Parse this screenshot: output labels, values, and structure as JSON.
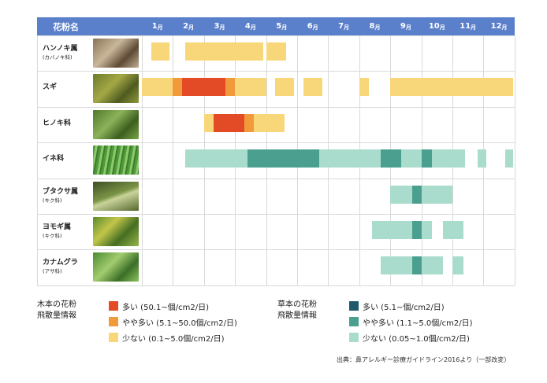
{
  "header": {
    "name_label": "花粉名"
  },
  "months": [
    {
      "num": "1",
      "unit": "月"
    },
    {
      "num": "2",
      "unit": "月"
    },
    {
      "num": "3",
      "unit": "月"
    },
    {
      "num": "4",
      "unit": "月"
    },
    {
      "num": "5",
      "unit": "月"
    },
    {
      "num": "6",
      "unit": "月"
    },
    {
      "num": "7",
      "unit": "月"
    },
    {
      "num": "8",
      "unit": "月"
    },
    {
      "num": "9",
      "unit": "月"
    },
    {
      "num": "10",
      "unit": "月"
    },
    {
      "num": "11",
      "unit": "月"
    },
    {
      "num": "12",
      "unit": "月"
    }
  ],
  "rows": [
    {
      "name": "ハンノキ属",
      "sub": "(カバノキ科)"
    },
    {
      "name": "スギ",
      "sub": ""
    },
    {
      "name": "ヒノキ科",
      "sub": ""
    },
    {
      "name": "イネ科",
      "sub": ""
    },
    {
      "name": "ブタクサ属",
      "sub": "(キク科)"
    },
    {
      "name": "ヨモギ属",
      "sub": "(キク科)"
    },
    {
      "name": "カナムグラ",
      "sub": "(アサ科)"
    }
  ],
  "legend_tree": {
    "title_line1": "木本の花粉",
    "title_line2": "飛散量情報",
    "items": [
      {
        "label": "多い (50.1~個/cm2/日)",
        "color": "#e34a26"
      },
      {
        "label": "やや多い (5.1~50.0個/cm2/日)",
        "color": "#f09a3c"
      },
      {
        "label": "少ない (0.1~5.0個/cm2/日)",
        "color": "#f8d77a"
      }
    ]
  },
  "legend_grass": {
    "title_line1": "草本の花粉",
    "title_line2": "飛散量情報",
    "items": [
      {
        "label": "多い (5.1~個/cm2/日)",
        "color": "#1f5a6b"
      },
      {
        "label": "やや多い (1.1~5.0個/cm2/日)",
        "color": "#4b9f8e"
      },
      {
        "label": "少ない (0.05~1.0個/cm2/日)",
        "color": "#a9dccd"
      }
    ]
  },
  "source": "出典：鼻アレルギー診療ガイドライン2016より（一部改変）",
  "colors": {
    "header": "#5a7fcb",
    "tree_high": "#e34a26",
    "tree_mid": "#f09a3c",
    "tree_low": "#f8d77a",
    "grass_high": "#1f5a6b",
    "grass_mid": "#4b9f8e",
    "grass_low": "#a9dccd"
  },
  "chart_data": {
    "type": "table",
    "columns": [
      "1月",
      "2月",
      "3月",
      "4月",
      "5月",
      "6月",
      "7月",
      "8月",
      "9月",
      "10月",
      "11月",
      "12月"
    ],
    "series": [
      {
        "name": "ハンノキ属",
        "segments": [
          {
            "start": 1.3,
            "end": 1.9,
            "level": "low"
          },
          {
            "start": 2.4,
            "end": 4.9,
            "level": "low"
          },
          {
            "start": 5.0,
            "end": 5.65,
            "level": "low"
          }
        ]
      },
      {
        "name": "スギ",
        "segments": [
          {
            "start": 1.0,
            "end": 2.0,
            "level": "low"
          },
          {
            "start": 2.0,
            "end": 2.3,
            "level": "mid"
          },
          {
            "start": 2.3,
            "end": 3.7,
            "level": "high"
          },
          {
            "start": 3.7,
            "end": 4.0,
            "level": "mid"
          },
          {
            "start": 4.0,
            "end": 5.0,
            "level": "low"
          },
          {
            "start": 5.3,
            "end": 5.9,
            "level": "low"
          },
          {
            "start": 6.2,
            "end": 6.8,
            "level": "low"
          },
          {
            "start": 8.0,
            "end": 8.3,
            "level": "low"
          },
          {
            "start": 9.0,
            "end": 12.95,
            "level": "low"
          }
        ]
      },
      {
        "name": "ヒノキ科",
        "segments": [
          {
            "start": 3.0,
            "end": 3.3,
            "level": "low"
          },
          {
            "start": 3.3,
            "end": 4.3,
            "level": "high"
          },
          {
            "start": 4.3,
            "end": 4.6,
            "level": "mid"
          },
          {
            "start": 4.6,
            "end": 5.6,
            "level": "low"
          }
        ]
      },
      {
        "name": "イネ科",
        "segments": [
          {
            "start": 2.4,
            "end": 4.4,
            "level": "low"
          },
          {
            "start": 4.4,
            "end": 6.7,
            "level": "mid"
          },
          {
            "start": 6.7,
            "end": 8.7,
            "level": "low"
          },
          {
            "start": 8.7,
            "end": 9.35,
            "level": "mid"
          },
          {
            "start": 9.35,
            "end": 10.0,
            "level": "low"
          },
          {
            "start": 10.0,
            "end": 10.35,
            "level": "mid"
          },
          {
            "start": 10.35,
            "end": 11.4,
            "level": "low"
          },
          {
            "start": 11.8,
            "end": 12.1,
            "level": "low"
          },
          {
            "start": 12.7,
            "end": 12.95,
            "level": "low"
          }
        ]
      },
      {
        "name": "ブタクサ属",
        "segments": [
          {
            "start": 9.0,
            "end": 9.7,
            "level": "low"
          },
          {
            "start": 9.7,
            "end": 10.0,
            "level": "mid"
          },
          {
            "start": 10.0,
            "end": 11.0,
            "level": "low"
          }
        ]
      },
      {
        "name": "ヨモギ属",
        "segments": [
          {
            "start": 8.4,
            "end": 9.7,
            "level": "low"
          },
          {
            "start": 9.7,
            "end": 10.0,
            "level": "mid"
          },
          {
            "start": 10.0,
            "end": 10.35,
            "level": "low"
          },
          {
            "start": 10.7,
            "end": 11.35,
            "level": "low"
          }
        ]
      },
      {
        "name": "カナムグラ",
        "segments": [
          {
            "start": 8.7,
            "end": 9.7,
            "level": "low"
          },
          {
            "start": 9.7,
            "end": 10.0,
            "level": "mid"
          },
          {
            "start": 10.0,
            "end": 10.7,
            "level": "low"
          },
          {
            "start": 11.0,
            "end": 11.35,
            "level": "low"
          }
        ]
      }
    ]
  }
}
